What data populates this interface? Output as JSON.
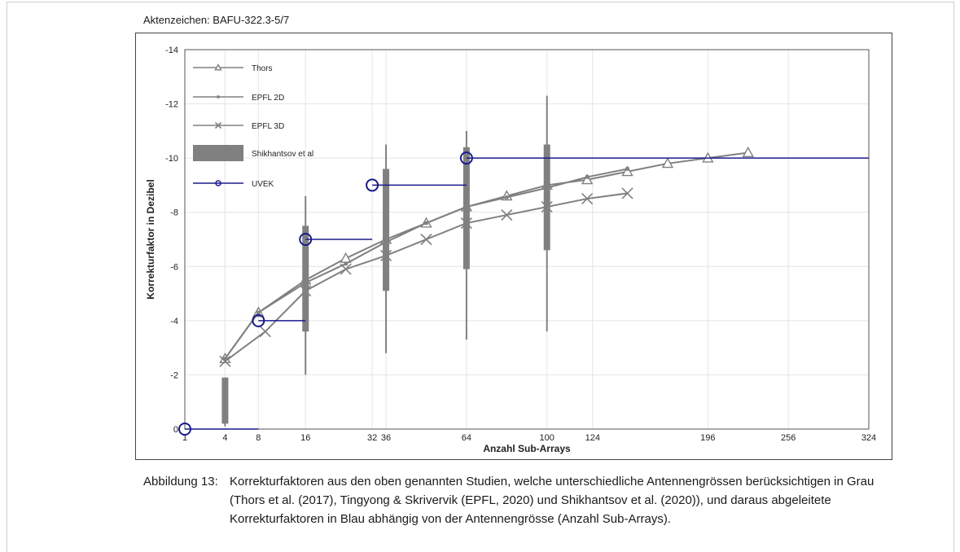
{
  "document": {
    "reference": "Aktenzeichen: BAFU-322.3-5/7",
    "caption_label": "Abbildung 13:",
    "caption_text": "Korrekturfaktoren aus den oben genannten Studien, welche unterschiedliche Antennengrössen berücksichtigen in Grau (Thors et al. (2017), Tingyong & Skrivervik (EPFL, 2020) und Shikhantsov et al. (2020)), und daraus abgeleitete Korrekturfaktoren in Blau abhängig von der Antennengrösse (Anzahl Sub-Arrays)."
  },
  "colors": {
    "gray": "#808080",
    "blue": "#1a1a8c",
    "grid": "#e4e4e4"
  },
  "chart_data": {
    "type": "line",
    "title": "",
    "xlabel": "Anzahl Sub-Arrays",
    "ylabel": "Korrekturfaktor in Dezibel",
    "x_scale": "sqrt",
    "x_ticks": [
      1,
      4,
      8,
      16,
      32,
      36,
      64,
      100,
      124,
      196,
      256,
      324
    ],
    "x_tick_labels": [
      "1",
      "4",
      "8",
      "16",
      "32",
      "36",
      "64",
      "100",
      "124",
      "196",
      "256",
      "324"
    ],
    "y_axis_inverted": true,
    "ylim": [
      0,
      -14
    ],
    "y_ticks": [
      0,
      -2,
      -4,
      -6,
      -8,
      -10,
      -12,
      -14
    ],
    "y_tick_labels": [
      "0",
      "-2",
      "-4",
      "-6",
      "-8",
      "-10",
      "-12",
      "-14"
    ],
    "grid": true,
    "legend_position": "top-left",
    "legend": [
      "Thors",
      "EPFL 2D",
      "EPFL 3D",
      "Shikhantsov et al",
      "UVEK"
    ],
    "series": [
      {
        "name": "Thors",
        "marker": "triangle",
        "x": [
          4,
          8,
          16,
          25,
          36,
          49,
          64,
          81,
          100,
          121,
          144,
          169,
          196,
          225
        ],
        "y": [
          -2.6,
          -4.3,
          -5.5,
          -6.3,
          -7.0,
          -7.6,
          -8.2,
          -8.6,
          -9.0,
          -9.2,
          -9.5,
          -9.8,
          -10.0,
          -10.2
        ]
      },
      {
        "name": "EPFL 2D",
        "marker": "square",
        "x": [
          4,
          8,
          16,
          25,
          36,
          49,
          64,
          81,
          100,
          121,
          144
        ],
        "y": [
          -2.6,
          -4.3,
          -5.4,
          -6.1,
          -6.9,
          -7.6,
          -8.2,
          -8.55,
          -8.9,
          -9.3,
          -9.6
        ]
      },
      {
        "name": "EPFL 3D",
        "marker": "x",
        "x": [
          4,
          9,
          16,
          25,
          36,
          49,
          64,
          81,
          100,
          121,
          144
        ],
        "y": [
          -2.5,
          -3.6,
          -5.1,
          -5.9,
          -6.4,
          -7.0,
          -7.6,
          -7.9,
          -8.2,
          -8.5,
          -8.7
        ]
      },
      {
        "name": "Shikhantsov et al",
        "type": "range",
        "x": [
          4,
          16,
          36,
          64,
          100
        ],
        "whisker_low": [
          -0.1,
          -2.0,
          -2.8,
          -3.3,
          -3.6
        ],
        "box_low": [
          -0.2,
          -3.6,
          -5.1,
          -5.9,
          -6.6
        ],
        "box_high": [
          -1.9,
          -7.5,
          -9.6,
          -10.4,
          -10.5
        ],
        "whisker_high": [
          -1.9,
          -8.6,
          -10.5,
          -11.0,
          -12.3
        ]
      },
      {
        "name": "UVEK",
        "type": "step",
        "marker": "circle",
        "segments": [
          {
            "x0": 1,
            "x1": 8,
            "y": 0
          },
          {
            "x0": 8,
            "x1": 16,
            "y": -4
          },
          {
            "x0": 16,
            "x1": 32,
            "y": -7
          },
          {
            "x0": 32,
            "x1": 64,
            "y": -9
          },
          {
            "x0": 64,
            "x1": 324,
            "y": -10
          }
        ],
        "points": [
          {
            "x": 1,
            "y": 0
          },
          {
            "x": 8,
            "y": -4
          },
          {
            "x": 16,
            "y": -7
          },
          {
            "x": 32,
            "y": -9
          },
          {
            "x": 64,
            "y": -10
          }
        ]
      }
    ]
  }
}
